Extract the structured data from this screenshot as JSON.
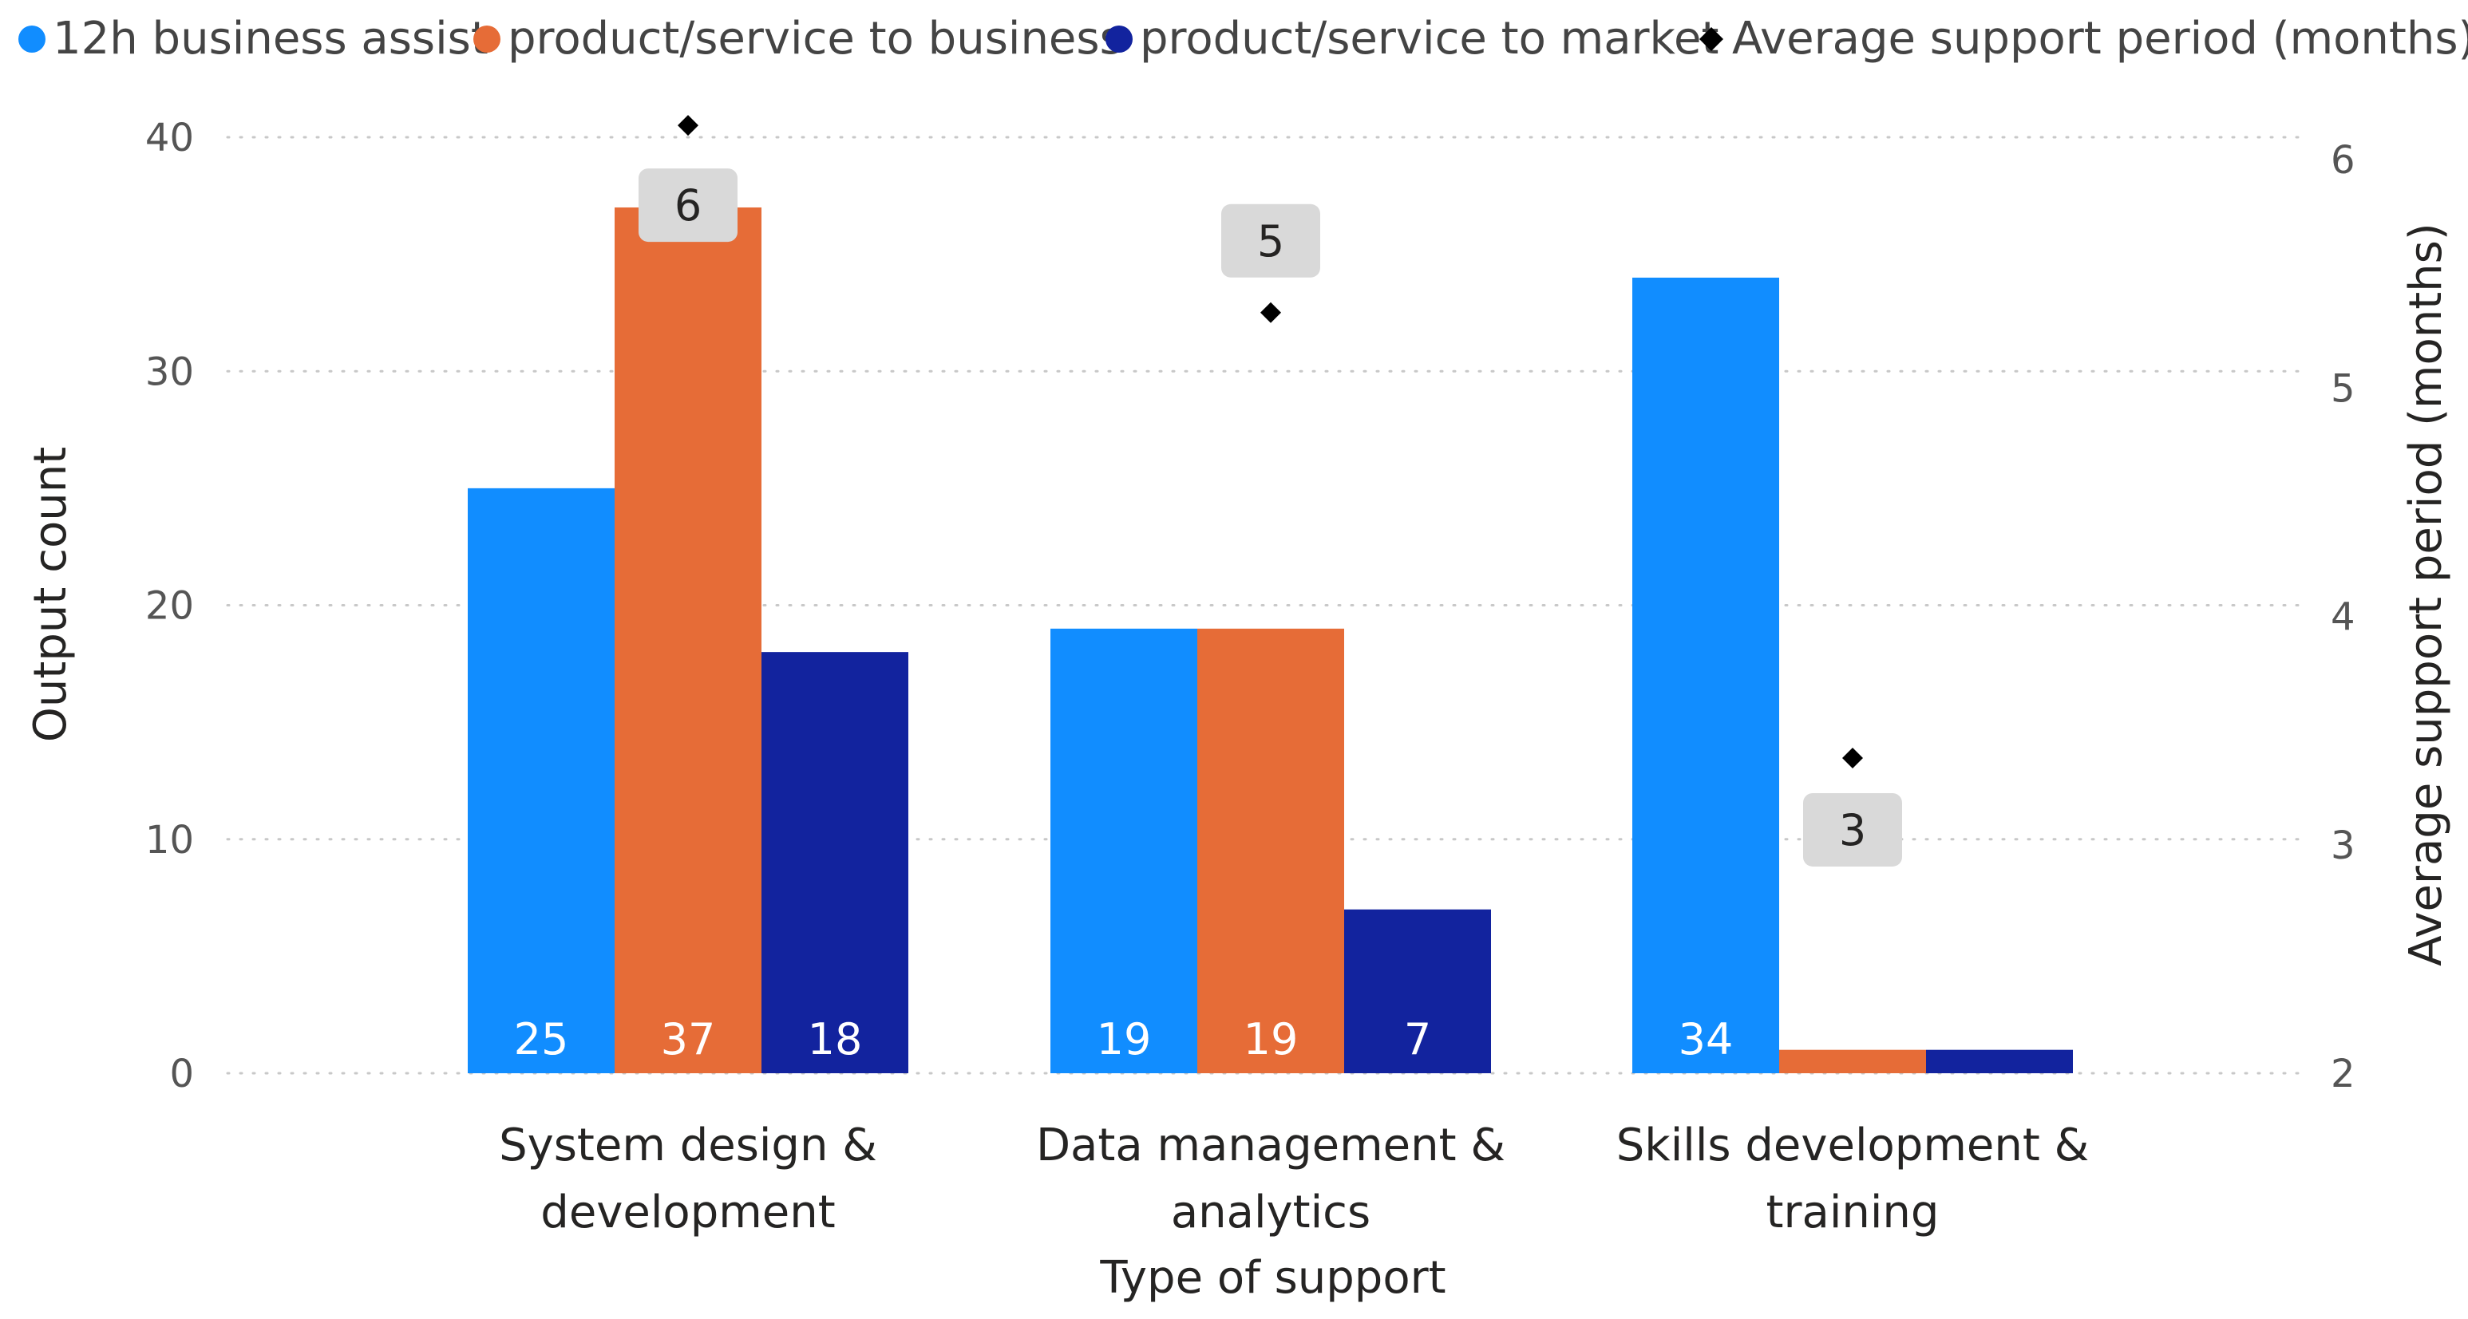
{
  "chart_data": {
    "type": "bar",
    "categories": [
      [
        "System design &",
        "development"
      ],
      [
        "Data management &",
        "analytics"
      ],
      [
        "Skills development &",
        "training"
      ]
    ],
    "series": [
      {
        "name": "12h business assist",
        "values": [
          25,
          19,
          34
        ],
        "color": "#118dff",
        "labels": [
          "25",
          "19",
          "34"
        ]
      },
      {
        "name": "product/service to business",
        "values": [
          37,
          19,
          1
        ],
        "color": "#e66c37",
        "labels": [
          "37",
          "19",
          ""
        ]
      },
      {
        "name": "product/service to market",
        "values": [
          18,
          7,
          1
        ],
        "color": "#12239e",
        "labels": [
          "18",
          "7",
          ""
        ]
      }
    ],
    "line_series": {
      "name": "Average support period (months)",
      "values": [
        6.15,
        5.33,
        3.38
      ],
      "labels": [
        "6",
        "5",
        "3"
      ],
      "color": "#000000",
      "label_bg": "#d9d9d9"
    },
    "xlabel": "Type of support",
    "ylabel": "Output count",
    "y2label": "Average support period (months)",
    "ylim": [
      0,
      40
    ],
    "y_ticks": [
      "0",
      "10",
      "20",
      "30",
      "40"
    ],
    "y2lim": [
      2,
      6.12
    ],
    "y2_ticks": [
      "2",
      "3",
      "4",
      "5",
      "6"
    ],
    "grid": true,
    "legend_position": "top-left"
  }
}
